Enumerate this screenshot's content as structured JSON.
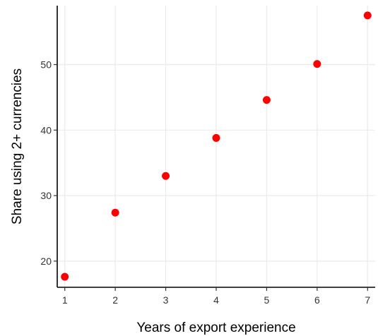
{
  "chart_data": {
    "type": "scatter",
    "title": "",
    "xlabel": "Years of export experience",
    "ylabel": "Share using 2+ currencies",
    "x": [
      1,
      2,
      3,
      4,
      5,
      6,
      7
    ],
    "y": [
      17.6,
      27.4,
      33.0,
      38.8,
      44.6,
      50.1,
      57.5
    ],
    "xlim": [
      0.85,
      7.15
    ],
    "ylim": [
      16.0,
      59.0
    ],
    "xticks": [
      1,
      2,
      3,
      4,
      5,
      6,
      7
    ],
    "yticks": [
      20,
      30,
      40,
      50
    ],
    "grid": true,
    "point_color": "#ff0000"
  }
}
